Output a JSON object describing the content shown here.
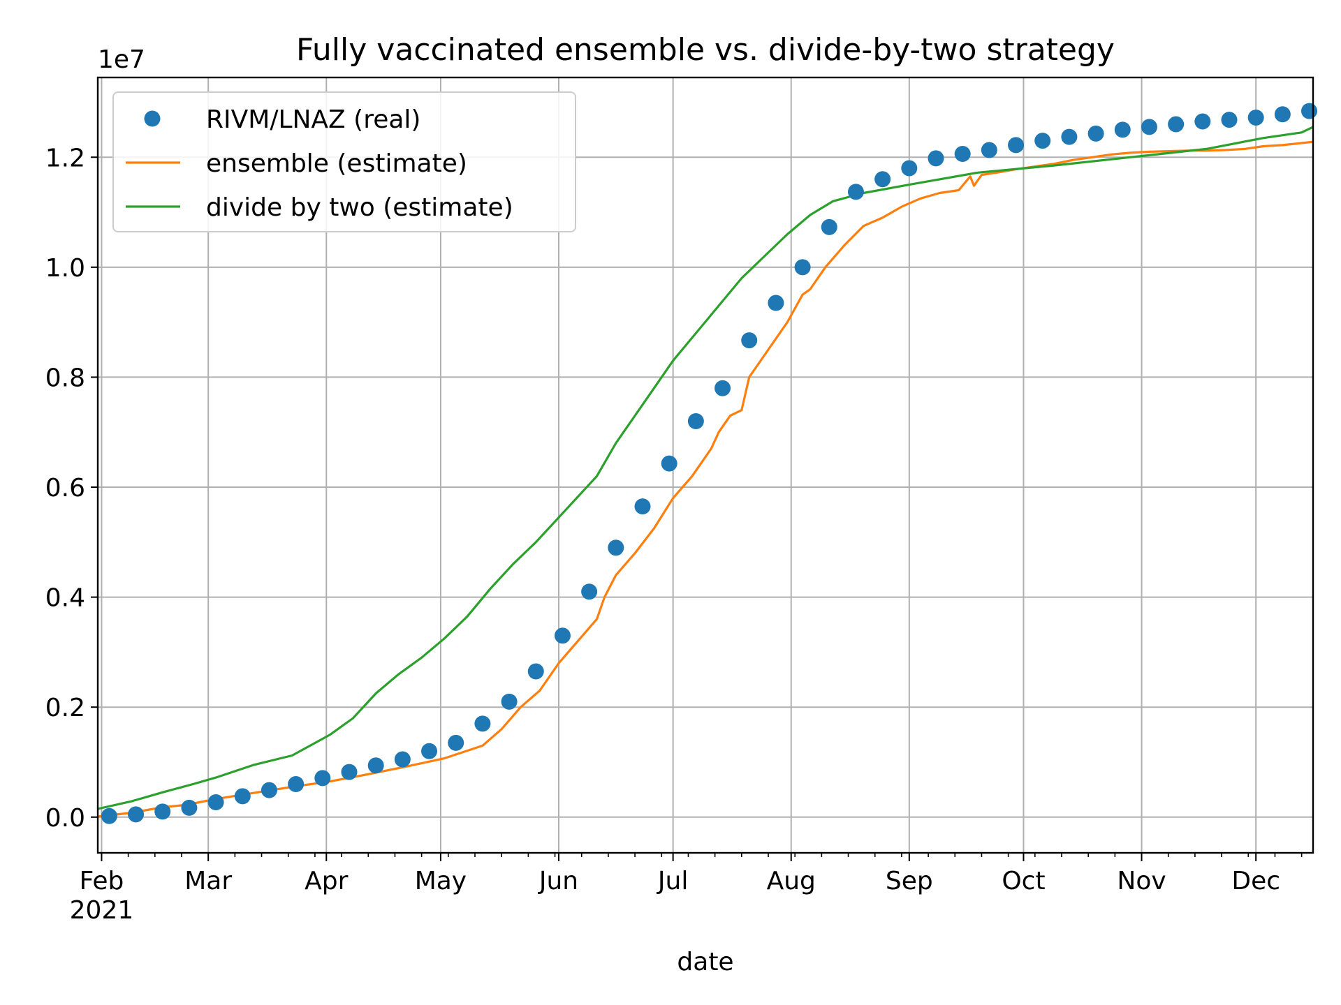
{
  "chart_data": {
    "type": "line",
    "title": "Fully vaccinated ensemble vs. divide-by-two strategy",
    "xlabel": "date",
    "ylabel": "",
    "y_scale_label": "1e7",
    "y_scale": 10000000,
    "ylim": [
      -0.065,
      1.345
    ],
    "xlim_days": [
      -1,
      318
    ],
    "x_origin_date": "2021-02-01",
    "grid": true,
    "legend_position": "top-left",
    "x_ticks": [
      {
        "day": 0,
        "label": "Feb",
        "sublabel": "2021"
      },
      {
        "day": 28,
        "label": "Mar"
      },
      {
        "day": 59,
        "label": "Apr"
      },
      {
        "day": 89,
        "label": "May"
      },
      {
        "day": 120,
        "label": "Jun"
      },
      {
        "day": 150,
        "label": "Jul"
      },
      {
        "day": 181,
        "label": "Aug"
      },
      {
        "day": 212,
        "label": "Sep"
      },
      {
        "day": 242,
        "label": "Oct"
      },
      {
        "day": 273,
        "label": "Nov"
      },
      {
        "day": 303,
        "label": "Dec"
      }
    ],
    "y_ticks": [
      {
        "value": 0.0,
        "label": "0.0"
      },
      {
        "value": 0.2,
        "label": "0.2"
      },
      {
        "value": 0.4,
        "label": "0.4"
      },
      {
        "value": 0.6,
        "label": "0.6"
      },
      {
        "value": 0.8,
        "label": "0.8"
      },
      {
        "value": 1.0,
        "label": "1.0"
      },
      {
        "value": 1.2,
        "label": "1.2"
      }
    ],
    "series": [
      {
        "name": "RIVM/LNAZ (real)",
        "style": "markers",
        "color": "#1f77b4",
        "x": [
          2,
          9,
          16,
          23,
          30,
          37,
          44,
          51,
          58,
          65,
          72,
          79,
          86,
          93,
          100,
          107,
          114,
          121,
          128,
          135,
          142,
          149,
          156,
          163,
          170,
          177,
          184,
          191,
          198,
          205,
          212,
          219,
          226,
          233,
          240,
          247,
          254,
          261,
          268,
          275,
          282,
          289,
          296,
          303,
          310,
          317
        ],
        "values": [
          0.002,
          0.005,
          0.01,
          0.017,
          0.027,
          0.038,
          0.049,
          0.06,
          0.071,
          0.082,
          0.094,
          0.105,
          0.12,
          0.135,
          0.17,
          0.21,
          0.265,
          0.33,
          0.41,
          0.49,
          0.565,
          0.643,
          0.72,
          0.78,
          0.867,
          0.935,
          1.0,
          1.073,
          1.137,
          1.16,
          1.18,
          1.198,
          1.206,
          1.213,
          1.222,
          1.23,
          1.237,
          1.243,
          1.25,
          1.255,
          1.26,
          1.265,
          1.268,
          1.272,
          1.278,
          1.284
        ]
      },
      {
        "name": "ensemble (estimate)",
        "style": "line",
        "color": "#ff7f0e",
        "x": [
          -1,
          8,
          16,
          22,
          30,
          40,
          50,
          60,
          70,
          80,
          90,
          100,
          105,
          110,
          115,
          120,
          125,
          130,
          132,
          135,
          140,
          145,
          150,
          155,
          160,
          162,
          165,
          168,
          170,
          175,
          180,
          184,
          186,
          190,
          195,
          200,
          205,
          210,
          215,
          220,
          225,
          228,
          229,
          231,
          235,
          240,
          245,
          250,
          255,
          260,
          265,
          270,
          275,
          280,
          285,
          290,
          295,
          300,
          305,
          310,
          318
        ],
        "values": [
          0.001,
          0.008,
          0.018,
          0.022,
          0.033,
          0.044,
          0.055,
          0.065,
          0.078,
          0.092,
          0.107,
          0.13,
          0.16,
          0.2,
          0.23,
          0.28,
          0.32,
          0.36,
          0.4,
          0.44,
          0.48,
          0.525,
          0.58,
          0.62,
          0.67,
          0.7,
          0.73,
          0.74,
          0.8,
          0.85,
          0.9,
          0.95,
          0.96,
          1.0,
          1.04,
          1.075,
          1.09,
          1.11,
          1.125,
          1.135,
          1.14,
          1.165,
          1.148,
          1.168,
          1.172,
          1.178,
          1.183,
          1.188,
          1.195,
          1.2,
          1.205,
          1.208,
          1.21,
          1.211,
          1.212,
          1.212,
          1.213,
          1.215,
          1.22,
          1.222,
          1.228
        ]
      },
      {
        "name": "divide by two (estimate)",
        "style": "line",
        "color": "#2ca02c",
        "x": [
          -1,
          8,
          16,
          24,
          30,
          40,
          50,
          60,
          66,
          72,
          78,
          84,
          90,
          96,
          102,
          108,
          114,
          120,
          126,
          130,
          135,
          140,
          145,
          150,
          156,
          162,
          168,
          174,
          180,
          186,
          192,
          200,
          212,
          230,
          250,
          270,
          290,
          305,
          315,
          318
        ],
        "values": [
          0.015,
          0.029,
          0.045,
          0.06,
          0.072,
          0.095,
          0.112,
          0.15,
          0.18,
          0.225,
          0.26,
          0.29,
          0.325,
          0.365,
          0.415,
          0.46,
          0.5,
          0.545,
          0.59,
          0.62,
          0.68,
          0.73,
          0.78,
          0.83,
          0.88,
          0.93,
          0.98,
          1.02,
          1.06,
          1.095,
          1.12,
          1.135,
          1.15,
          1.172,
          1.185,
          1.2,
          1.215,
          1.235,
          1.245,
          1.255
        ]
      }
    ]
  }
}
